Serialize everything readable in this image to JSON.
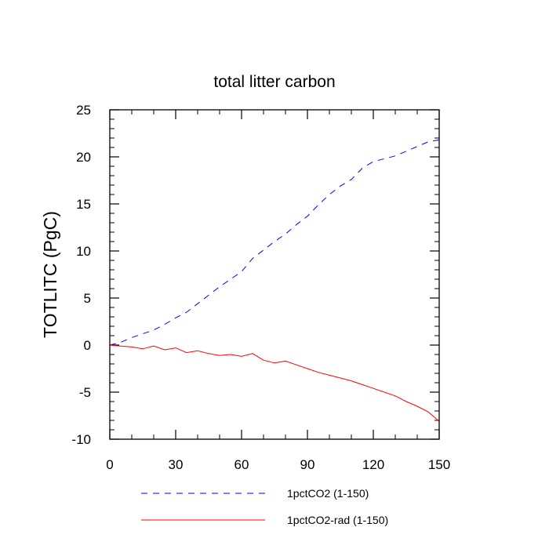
{
  "chart_data": {
    "type": "line",
    "title": "total litter carbon",
    "xlabel": "",
    "ylabel": "TOTLITC  (PgC)",
    "xlim": [
      0,
      150
    ],
    "ylim": [
      -10,
      25
    ],
    "xticks": [
      0,
      30,
      60,
      90,
      120,
      150
    ],
    "xtick_labels": [
      "0",
      "30",
      "60",
      "90",
      "120",
      "150"
    ],
    "yticks": [
      -10,
      -5,
      0,
      5,
      10,
      15,
      20,
      25
    ],
    "ytick_labels": [
      "-10",
      "-5",
      "0",
      "5",
      "10",
      "15",
      "20",
      "25"
    ],
    "grid": false,
    "legend_position": "bottom",
    "x": [
      0,
      5,
      10,
      15,
      20,
      25,
      30,
      35,
      40,
      45,
      50,
      55,
      60,
      65,
      70,
      75,
      80,
      85,
      90,
      95,
      100,
      105,
      110,
      115,
      120,
      125,
      130,
      135,
      140,
      145,
      150
    ],
    "series": [
      {
        "name": "1pctCO2 (1-150)",
        "color": "#0000ff",
        "style": "dashed",
        "values": [
          0.0,
          0.3,
          0.8,
          1.2,
          1.6,
          2.2,
          2.9,
          3.5,
          4.4,
          5.3,
          6.2,
          7.0,
          7.8,
          9.2,
          10.1,
          11.0,
          11.8,
          12.8,
          13.7,
          14.9,
          16.0,
          16.9,
          17.6,
          18.8,
          19.5,
          19.8,
          20.1,
          20.6,
          21.1,
          21.6,
          21.8
        ]
      },
      {
        "name": "1pctCO2-rad (1-150)",
        "color": "#ff0000",
        "style": "solid",
        "values": [
          0.0,
          -0.1,
          -0.2,
          -0.4,
          -0.1,
          -0.5,
          -0.3,
          -0.8,
          -0.6,
          -0.9,
          -1.1,
          -1.0,
          -1.2,
          -0.9,
          -1.6,
          -1.9,
          -1.7,
          -2.1,
          -2.5,
          -2.9,
          -3.2,
          -3.5,
          -3.8,
          -4.2,
          -4.6,
          -5.0,
          -5.4,
          -6.0,
          -6.5,
          -7.1,
          -8.1
        ]
      }
    ]
  }
}
